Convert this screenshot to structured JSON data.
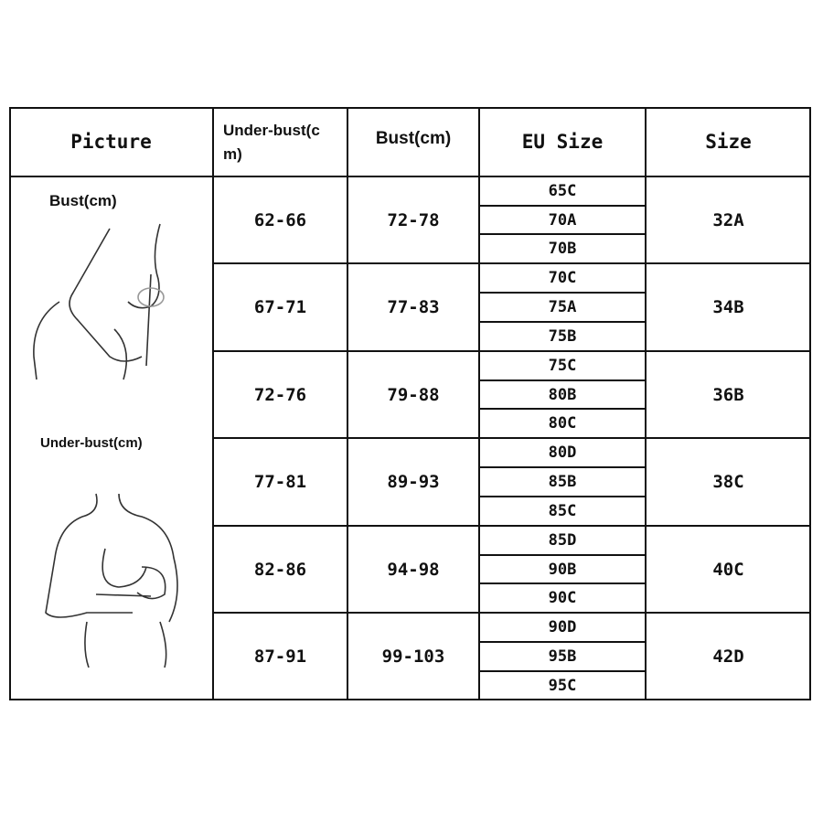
{
  "headers": {
    "picture": "Picture",
    "under_bust": "Under-bust(c\nm)",
    "bust": "Bust(cm)",
    "eu_size": "EU Size",
    "size": "Size"
  },
  "picture_labels": {
    "bust": "Bust(cm)",
    "under_bust": "Under-bust(cm)"
  },
  "rows": [
    {
      "under_bust": "62-66",
      "bust": "72-78",
      "eu_sizes": [
        "65C",
        "70A",
        "70B"
      ],
      "size": "32A"
    },
    {
      "under_bust": "67-71",
      "bust": "77-83",
      "eu_sizes": [
        "70C",
        "75A",
        "75B"
      ],
      "size": "34B"
    },
    {
      "under_bust": "72-76",
      "bust": "79-88",
      "eu_sizes": [
        "75C",
        "80B",
        "80C"
      ],
      "size": "36B"
    },
    {
      "under_bust": "77-81",
      "bust": "89-93",
      "eu_sizes": [
        "80D",
        "85B",
        "85C"
      ],
      "size": "38C"
    },
    {
      "under_bust": "82-86",
      "bust": "94-98",
      "eu_sizes": [
        "85D",
        "90B",
        "90C"
      ],
      "size": "40C"
    },
    {
      "under_bust": "87-91",
      "bust": "99-103",
      "eu_sizes": [
        "90D",
        "95B",
        "95C"
      ],
      "size": "42D"
    }
  ]
}
